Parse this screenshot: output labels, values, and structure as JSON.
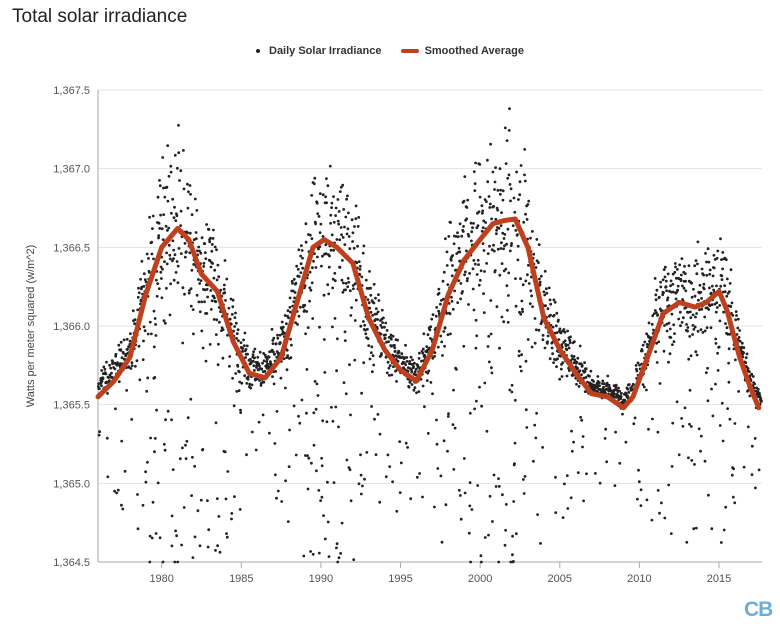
{
  "title": "Total solar irradiance",
  "colors": {
    "dots": "#222222",
    "smooth": "#c0401e",
    "axis": "#aaaaaa",
    "grid": "#e2e2e2",
    "brand": "#6aaed6"
  },
  "legend": {
    "daily": "Daily Solar Irradiance",
    "smoothed": "Smoothed Average"
  },
  "logo": "CB",
  "chart_data": {
    "type": "scatter",
    "title": "Total solar irradiance",
    "ylabel": "Watts per meter squared (w/m^2)",
    "xlabel": "",
    "xlim": [
      1976.0,
      2017.7
    ],
    "ylim": [
      1364.5,
      1367.5
    ],
    "x_ticks": [
      1980,
      1985,
      1990,
      1995,
      2000,
      2005,
      2010,
      2015
    ],
    "y_ticks": [
      1364.5,
      1365.0,
      1365.5,
      1366.0,
      1366.5,
      1367.0,
      1367.5
    ],
    "y_tick_labels": [
      "1,364.5",
      "1,365.0",
      "1,365.5",
      "1,366.0",
      "1,366.5",
      "1,367.0",
      "1,367.5"
    ],
    "grid": "horizontal",
    "legend_position": "top-center",
    "series": [
      {
        "name": "Smoothed Average",
        "type": "line",
        "x": [
          1976.0,
          1977.0,
          1978.0,
          1979.0,
          1980.0,
          1981.0,
          1981.7,
          1982.5,
          1983.5,
          1984.5,
          1985.5,
          1986.5,
          1987.5,
          1988.5,
          1989.5,
          1990.2,
          1991.0,
          1992.0,
          1993.0,
          1994.0,
          1995.0,
          1996.0,
          1997.0,
          1998.0,
          1999.0,
          2000.0,
          2000.8,
          2001.5,
          2002.2,
          2003.0,
          2004.0,
          2005.0,
          2006.0,
          2007.0,
          2008.0,
          2009.0,
          2009.6,
          2010.5,
          2011.5,
          2012.5,
          2013.5,
          2014.2,
          2015.0,
          2015.5,
          2016.3,
          2017.0,
          2017.5
        ],
        "y": [
          1365.55,
          1365.65,
          1365.8,
          1366.2,
          1366.5,
          1366.62,
          1366.55,
          1366.33,
          1366.22,
          1365.9,
          1365.7,
          1365.67,
          1365.8,
          1366.15,
          1366.5,
          1366.55,
          1366.5,
          1366.4,
          1366.05,
          1365.85,
          1365.72,
          1365.65,
          1365.85,
          1366.2,
          1366.42,
          1366.55,
          1366.65,
          1366.67,
          1366.68,
          1366.5,
          1366.05,
          1365.85,
          1365.7,
          1365.57,
          1365.55,
          1365.48,
          1365.55,
          1365.8,
          1366.08,
          1366.15,
          1366.12,
          1366.15,
          1366.22,
          1366.1,
          1365.8,
          1365.6,
          1365.48
        ]
      },
      {
        "name": "Daily Solar Irradiance",
        "type": "scatter",
        "dot_color": "#222222"
      }
    ]
  }
}
